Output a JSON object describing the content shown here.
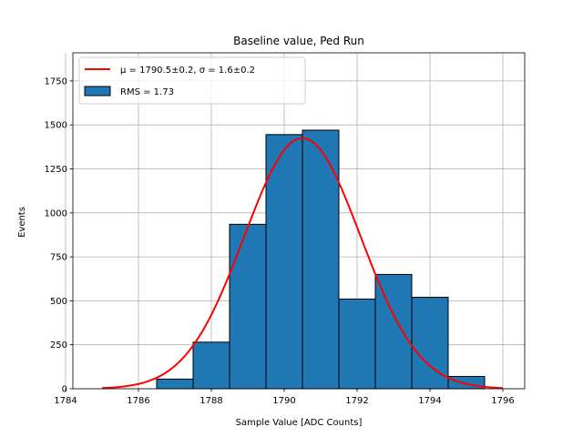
{
  "chart_data": {
    "type": "bar",
    "title": "Baseline value, Ped Run",
    "xlabel": "Sample Value [ADC Counts]",
    "ylabel": "Events",
    "xlim": [
      1784.2,
      1796.6
    ],
    "ylim": [
      0,
      1910
    ],
    "xticks": [
      1784,
      1786,
      1788,
      1790,
      1792,
      1794,
      1796
    ],
    "yticks": [
      0,
      250,
      500,
      750,
      1000,
      1250,
      1500,
      1750
    ],
    "grid": true,
    "legend_position": "upper left",
    "bar_color": "#1f77b4",
    "fit_color": "#ff0000",
    "bins": [
      {
        "x0": 1786.5,
        "x1": 1787.5,
        "value": 55
      },
      {
        "x0": 1787.5,
        "x1": 1788.5,
        "value": 265
      },
      {
        "x0": 1788.5,
        "x1": 1789.5,
        "value": 935
      },
      {
        "x0": 1789.5,
        "x1": 1790.5,
        "value": 1445
      },
      {
        "x0": 1790.5,
        "x1": 1791.5,
        "value": 1470
      },
      {
        "x0": 1791.5,
        "x1": 1792.5,
        "value": 510
      },
      {
        "x0": 1792.5,
        "x1": 1793.5,
        "value": 650
      },
      {
        "x0": 1793.5,
        "x1": 1794.5,
        "value": 520
      },
      {
        "x0": 1794.5,
        "x1": 1795.5,
        "value": 70
      }
    ],
    "fit": {
      "mu": 1790.5,
      "sigma": 1.6,
      "amplitude": 1425,
      "x_start": 1785,
      "x_end": 1796,
      "legend_label": "μ = 1790.5±0.2, σ = 1.6±0.2"
    },
    "legend": [
      {
        "label": "μ = 1790.5±0.2, σ = 1.6±0.2",
        "kind": "line"
      },
      {
        "label": "RMS = 1.73",
        "kind": "bar"
      }
    ]
  }
}
